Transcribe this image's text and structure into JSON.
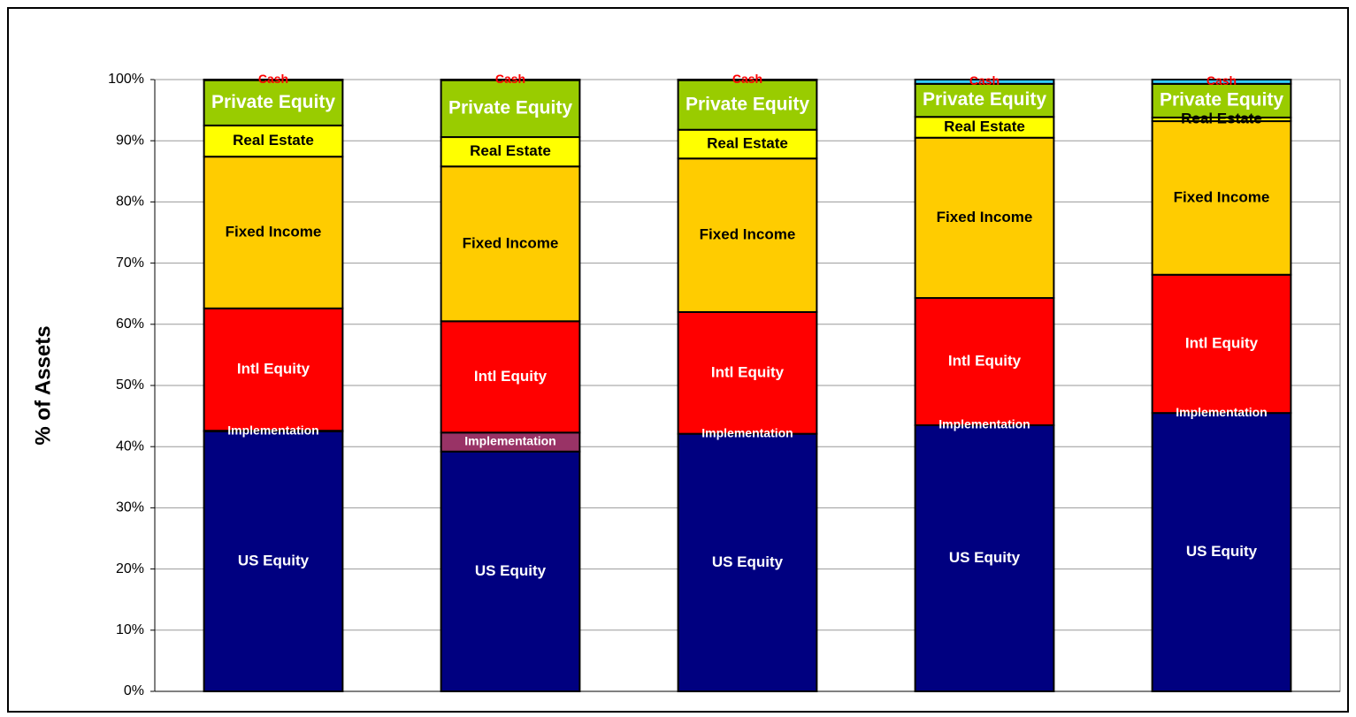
{
  "chart_data": {
    "type": "stacked_bar",
    "y_label": "% of Assets",
    "categories": [
      null,
      null,
      null,
      null,
      null
    ],
    "series": [
      {
        "name": "US Equity",
        "color": "#000080",
        "label_color": "#ffffff",
        "values": [
          42.5,
          39.2,
          42.1,
          43.5,
          45.5
        ]
      },
      {
        "name": "Implementation",
        "color": "#993366",
        "label_color": "#ffffff",
        "values": [
          0.1,
          3.1,
          0,
          0,
          0
        ]
      },
      {
        "name": "Intl Equity",
        "color": "#ff0000",
        "label_color": "#ffffff",
        "values": [
          20.0,
          18.2,
          19.9,
          20.8,
          22.6
        ]
      },
      {
        "name": "Fixed Income",
        "color": "#ffcc00",
        "label_color": "#000000",
        "values": [
          24.8,
          25.3,
          25.1,
          26.2,
          25.1
        ]
      },
      {
        "name": "Real Estate",
        "color": "#ffff00",
        "label_color": "#000000",
        "values": [
          5.1,
          4.8,
          4.7,
          3.4,
          0.6
        ]
      },
      {
        "name": "Private Equity",
        "color": "#99cc00",
        "label_color": "#ffffff",
        "values": [
          7.4,
          9.3,
          8.1,
          5.4,
          5.5
        ]
      },
      {
        "name": "Cash",
        "color": "#33ccff",
        "label_color": "#ff0000",
        "values": [
          0.1,
          0.1,
          0.1,
          0.7,
          0.7
        ]
      }
    ],
    "ylim": [
      0,
      100
    ],
    "yticks": [
      {
        "value": 0,
        "label": "0%"
      },
      {
        "value": 10,
        "label": "10%"
      },
      {
        "value": 20,
        "label": "20%"
      },
      {
        "value": 30,
        "label": "30%"
      },
      {
        "value": 40,
        "label": "40%"
      },
      {
        "value": 50,
        "label": "50%"
      },
      {
        "value": 60,
        "label": "60%"
      },
      {
        "value": 70,
        "label": "70%"
      },
      {
        "value": 80,
        "label": "80%"
      },
      {
        "value": 90,
        "label": "90%"
      },
      {
        "value": 100,
        "label": "100%"
      }
    ],
    "grid": true
  }
}
